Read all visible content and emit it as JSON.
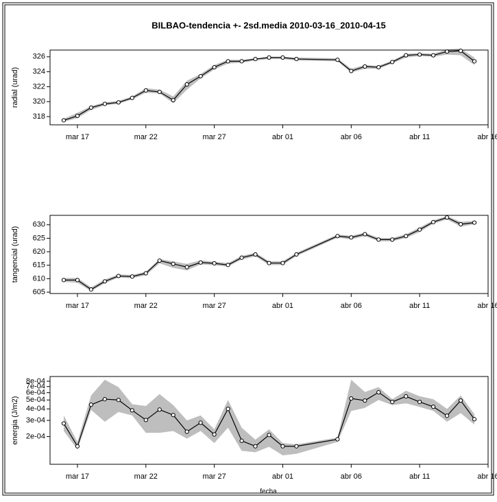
{
  "chart_data": [
    {
      "type": "line",
      "title": "BILBAO-tendencia +- 2sd.media 2010-03-16_2010-04-15",
      "ylabel": "radial (urad)",
      "x": [
        "2010-03-16",
        "2010-03-17",
        "2010-03-18",
        "2010-03-19",
        "2010-03-20",
        "2010-03-21",
        "2010-03-22",
        "2010-03-23",
        "2010-03-24",
        "2010-03-25",
        "2010-03-26",
        "2010-03-27",
        "2010-03-28",
        "2010-03-29",
        "2010-03-30",
        "2010-03-31",
        "2010-04-01",
        "2010-04-02",
        "2010-04-05",
        "2010-04-06",
        "2010-04-07",
        "2010-04-08",
        "2010-04-09",
        "2010-04-10",
        "2010-04-11",
        "2010-04-12",
        "2010-04-13",
        "2010-04-14",
        "2010-04-15"
      ],
      "values": [
        317.5,
        318.1,
        319.2,
        319.7,
        319.9,
        320.5,
        321.5,
        321.3,
        320.2,
        322.3,
        323.4,
        324.6,
        325.4,
        325.4,
        325.7,
        325.9,
        325.9,
        325.7,
        325.6,
        324.1,
        324.7,
        324.6,
        325.3,
        326.2,
        326.3,
        326.2,
        326.7,
        326.8,
        325.4
      ],
      "band_lower": [
        317.3,
        317.8,
        318.9,
        319.5,
        319.7,
        320.3,
        321.2,
        321.1,
        319.8,
        321.6,
        323.1,
        324.3,
        325.1,
        325.2,
        325.5,
        325.7,
        325.7,
        325.5,
        325.4,
        323.9,
        324.4,
        324.4,
        325.1,
        325.9,
        326.1,
        326.0,
        326.3,
        326.2,
        324.9
      ],
      "band_upper": [
        317.7,
        318.5,
        319.4,
        319.9,
        320.1,
        320.7,
        321.8,
        321.6,
        320.7,
        322.8,
        323.7,
        324.9,
        325.6,
        325.6,
        325.8,
        326.0,
        326.0,
        325.9,
        325.8,
        324.4,
        324.9,
        324.8,
        325.5,
        326.4,
        326.5,
        326.4,
        327.0,
        327.1,
        325.9
      ],
      "xlim": [
        "2010-03-15",
        "2010-04-16"
      ],
      "xticks": [
        {
          "value": "2010-03-17",
          "label": "mar 17"
        },
        {
          "value": "2010-03-22",
          "label": "mar 22"
        },
        {
          "value": "2010-03-27",
          "label": "mar 27"
        },
        {
          "value": "2010-04-01",
          "label": "abr 01"
        },
        {
          "value": "2010-04-06",
          "label": "abr 06"
        },
        {
          "value": "2010-04-11",
          "label": "abr 11"
        },
        {
          "value": "2010-04-16",
          "label": "abr 16"
        }
      ],
      "ylim": [
        316.9,
        326.9
      ],
      "yticks": [
        318,
        320,
        322,
        324,
        326
      ],
      "log_scale": false,
      "band_color": "#bebebe",
      "line_color": "#000000"
    },
    {
      "type": "line",
      "ylabel": "tangencial (urad)",
      "x": [
        "2010-03-16",
        "2010-03-17",
        "2010-03-18",
        "2010-03-19",
        "2010-03-20",
        "2010-03-21",
        "2010-03-22",
        "2010-03-23",
        "2010-03-24",
        "2010-03-25",
        "2010-03-26",
        "2010-03-27",
        "2010-03-28",
        "2010-03-29",
        "2010-03-30",
        "2010-03-31",
        "2010-04-01",
        "2010-04-02",
        "2010-04-05",
        "2010-04-06",
        "2010-04-07",
        "2010-04-08",
        "2010-04-09",
        "2010-04-10",
        "2010-04-11",
        "2010-04-12",
        "2010-04-13",
        "2010-04-14",
        "2010-04-15"
      ],
      "values": [
        609.5,
        609.5,
        606,
        609,
        611,
        610.8,
        612,
        616.7,
        615.5,
        614.3,
        616,
        615.7,
        615.1,
        617.8,
        619,
        615.8,
        615.8,
        619,
        625.8,
        625.3,
        626.5,
        624.5,
        624.5,
        625.8,
        628.2,
        631,
        632.7,
        630.2,
        630.8
      ],
      "band_lower": [
        608.8,
        608.5,
        605.4,
        608.3,
        610.4,
        610.2,
        611.3,
        615.7,
        614.0,
        613.1,
        615.3,
        615.0,
        614.5,
        617.1,
        618.3,
        615.1,
        615.1,
        618.4,
        625.2,
        624.6,
        625.8,
        623.9,
        623.9,
        625.1,
        627.3,
        630.4,
        632.0,
        629.3,
        630.2
      ],
      "band_upper": [
        610.2,
        610.3,
        606.8,
        609.7,
        611.6,
        611.4,
        612.6,
        617.3,
        616.4,
        615.5,
        616.8,
        616.3,
        615.8,
        618.5,
        619.6,
        616.5,
        616.5,
        619.6,
        626.4,
        625.9,
        627.1,
        625.1,
        625.1,
        626.5,
        629.0,
        631.7,
        633.2,
        631.1,
        631.4
      ],
      "xlim": [
        "2010-03-15",
        "2010-04-16"
      ],
      "xticks": [
        {
          "value": "2010-03-17",
          "label": "mar 17"
        },
        {
          "value": "2010-03-22",
          "label": "mar 22"
        },
        {
          "value": "2010-03-27",
          "label": "mar 27"
        },
        {
          "value": "2010-04-01",
          "label": "abr 01"
        },
        {
          "value": "2010-04-06",
          "label": "abr 06"
        },
        {
          "value": "2010-04-11",
          "label": "abr 11"
        },
        {
          "value": "2010-04-16",
          "label": "abr 16"
        }
      ],
      "ylim": [
        604.5,
        633.5
      ],
      "yticks": [
        605,
        610,
        615,
        620,
        625,
        630
      ],
      "log_scale": false,
      "band_color": "#bebebe",
      "line_color": "#000000"
    },
    {
      "type": "line",
      "ylabel": "energia (J/m2)",
      "xlabel": "fecha",
      "x": [
        "2010-03-16",
        "2010-03-17",
        "2010-03-18",
        "2010-03-19",
        "2010-03-20",
        "2010-03-21",
        "2010-03-22",
        "2010-03-23",
        "2010-03-24",
        "2010-03-25",
        "2010-03-26",
        "2010-03-27",
        "2010-03-28",
        "2010-03-29",
        "2010-03-30",
        "2010-03-31",
        "2010-04-01",
        "2010-04-02",
        "2010-04-05",
        "2010-04-06",
        "2010-04-07",
        "2010-04-08",
        "2010-04-09",
        "2010-04-10",
        "2010-04-11",
        "2010-04-12",
        "2010-04-13",
        "2010-04-14",
        "2010-04-15"
      ],
      "values": [
        0.000278,
        0.000157,
        0.000444,
        0.00051,
        0.0005,
        0.000386,
        0.000303,
        0.000393,
        0.000343,
        0.000226,
        0.000283,
        0.000211,
        0.0004,
        0.00018,
        0.000157,
        0.000208,
        0.000157,
        0.000157,
        0.000187,
        0.000519,
        0.000493,
        0.000606,
        0.000476,
        0.000547,
        0.000476,
        0.000422,
        0.000337,
        0.000493,
        0.000309
      ],
      "band_lower": [
        0.00023,
        0.000145,
        0.00039,
        0.00029,
        0.00037,
        0.00034,
        0.00022,
        0.00022,
        0.00023,
        0.00019,
        0.00023,
        0.00017,
        0.00025,
        0.00014,
        0.000135,
        0.000155,
        0.000125,
        0.00013,
        0.000175,
        0.00038,
        0.00041,
        0.0005,
        0.00044,
        0.00046,
        0.00042,
        0.00038,
        0.00029,
        0.00036,
        0.00027
      ],
      "band_upper": [
        0.00034,
        0.000175,
        0.00056,
        0.00083,
        0.00069,
        0.00045,
        0.00043,
        0.00058,
        0.00044,
        0.0003,
        0.00034,
        0.00024,
        0.0005,
        0.00025,
        0.000185,
        0.00024,
        0.00017,
        0.000165,
        0.000195,
        0.00083,
        0.00061,
        0.00069,
        0.00051,
        0.00063,
        0.00055,
        0.00051,
        0.0004,
        0.00056,
        0.00035
      ],
      "xlim": [
        "2010-03-15",
        "2010-04-16"
      ],
      "xticks": [
        {
          "value": "2010-03-17",
          "label": "mar 17"
        },
        {
          "value": "2010-03-22",
          "label": "mar 22"
        },
        {
          "value": "2010-03-27",
          "label": "mar 27"
        },
        {
          "value": "2010-04-01",
          "label": "abr 01"
        },
        {
          "value": "2010-04-06",
          "label": "abr 06"
        },
        {
          "value": "2010-04-11",
          "label": "abr 11"
        },
        {
          "value": "2010-04-16",
          "label": "abr 16"
        }
      ],
      "ylim": [
        0.0001,
        0.0009
      ],
      "yticks": [
        {
          "value": 0.0002,
          "label": "2e-04"
        },
        {
          "value": 0.0003,
          "label": "3e-04"
        },
        {
          "value": 0.0004,
          "label": "4e-04"
        },
        {
          "value": 0.0005,
          "label": "5e-04"
        },
        {
          "value": 0.0006,
          "label": "6e-04"
        },
        {
          "value": 0.0007,
          "label": "7e-04"
        },
        {
          "value": 0.0008,
          "label": "8e-04"
        }
      ],
      "log_scale": true,
      "band_color": "#bebebe",
      "line_color": "#000000"
    }
  ]
}
